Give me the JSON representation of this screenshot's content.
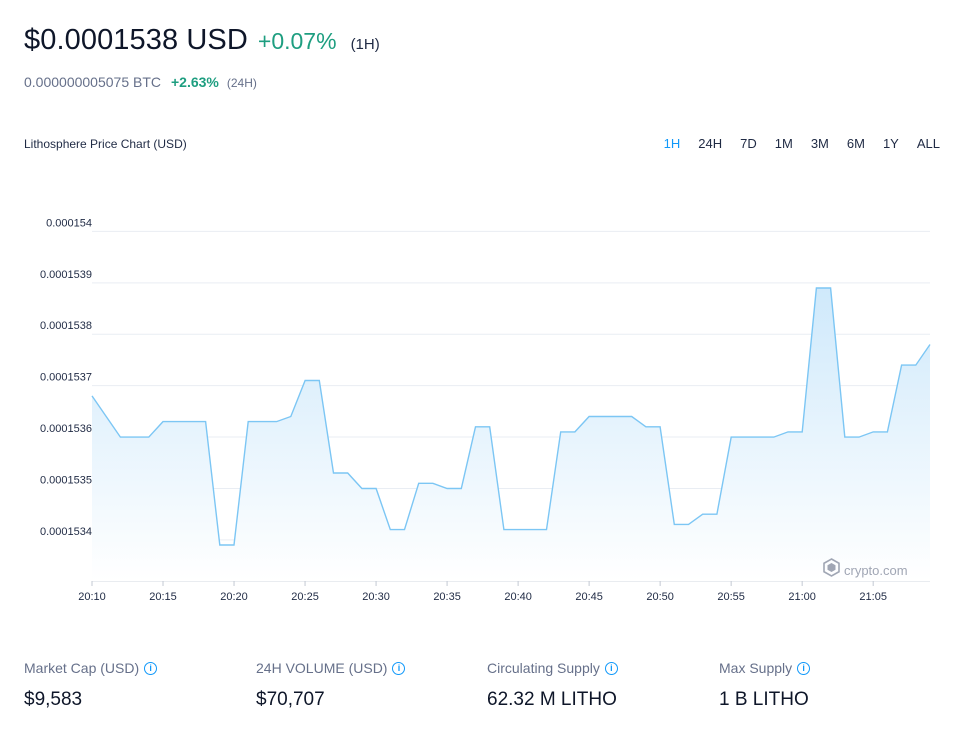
{
  "header": {
    "price": "$0.0001538 USD",
    "change": "+0.07%",
    "period": "(1H)",
    "btc_price": "0.000000005075 BTC",
    "btc_change": "+2.63%",
    "btc_period": "(24H)"
  },
  "chart_header": {
    "title": "Lithosphere Price Chart (USD)",
    "ranges": [
      "1H",
      "24H",
      "7D",
      "1M",
      "3M",
      "6M",
      "1Y",
      "ALL"
    ],
    "active_range": "1H"
  },
  "watermark": {
    "text": "crypto.com",
    "icon": "crypto-com-logo-icon"
  },
  "colors": {
    "line": "#7cc6f4",
    "fill_top": "#cfe9fb",
    "fill_bottom": "#ffffff",
    "up": "#1e9e80",
    "accent": "#1199fa",
    "grid": "#e9edf3"
  },
  "chart_data": {
    "type": "area",
    "title": "Lithosphere Price Chart (USD)",
    "xlabel": "",
    "ylabel": "",
    "grid": true,
    "y_ticks": [
      0.0001534,
      0.0001535,
      0.0001536,
      0.0001537,
      0.0001538,
      0.0001539,
      0.000154
    ],
    "y_tick_labels": [
      "0.0001534",
      "0.0001535",
      "0.0001536",
      "0.0001537",
      "0.0001538",
      "0.0001539",
      "0.000154"
    ],
    "ylim": [
      0.00015332,
      0.0001541
    ],
    "x_ticks": [
      "20:10",
      "20:15",
      "20:20",
      "20:25",
      "20:30",
      "20:35",
      "20:40",
      "20:45",
      "20:50",
      "20:55",
      "21:00",
      "21:05"
    ],
    "x_range": [
      "20:10",
      "21:09"
    ],
    "series": [
      {
        "points": [
          [
            "20:10",
            0.00015368
          ],
          [
            "20:11",
            0.00015364
          ],
          [
            "20:12",
            0.0001536
          ],
          [
            "20:13",
            0.0001536
          ],
          [
            "20:14",
            0.0001536
          ],
          [
            "20:15",
            0.00015363
          ],
          [
            "20:16",
            0.00015363
          ],
          [
            "20:17",
            0.00015363
          ],
          [
            "20:18",
            0.00015363
          ],
          [
            "20:19",
            0.00015339
          ],
          [
            "20:20",
            0.00015339
          ],
          [
            "20:21",
            0.00015363
          ],
          [
            "20:22",
            0.00015363
          ],
          [
            "20:23",
            0.00015363
          ],
          [
            "20:24",
            0.00015364
          ],
          [
            "20:25",
            0.00015371
          ],
          [
            "20:26",
            0.00015371
          ],
          [
            "20:27",
            0.00015353
          ],
          [
            "20:28",
            0.00015353
          ],
          [
            "20:29",
            0.0001535
          ],
          [
            "20:30",
            0.0001535
          ],
          [
            "20:31",
            0.00015342
          ],
          [
            "20:32",
            0.00015342
          ],
          [
            "20:33",
            0.00015351
          ],
          [
            "20:34",
            0.00015351
          ],
          [
            "20:35",
            0.0001535
          ],
          [
            "20:36",
            0.0001535
          ],
          [
            "20:37",
            0.00015362
          ],
          [
            "20:38",
            0.00015362
          ],
          [
            "20:39",
            0.00015342
          ],
          [
            "20:40",
            0.00015342
          ],
          [
            "20:41",
            0.00015342
          ],
          [
            "20:42",
            0.00015342
          ],
          [
            "20:43",
            0.00015361
          ],
          [
            "20:44",
            0.00015361
          ],
          [
            "20:45",
            0.00015364
          ],
          [
            "20:46",
            0.00015364
          ],
          [
            "20:47",
            0.00015364
          ],
          [
            "20:48",
            0.00015364
          ],
          [
            "20:49",
            0.00015362
          ],
          [
            "20:50",
            0.00015362
          ],
          [
            "20:51",
            0.00015343
          ],
          [
            "20:52",
            0.00015343
          ],
          [
            "20:53",
            0.00015345
          ],
          [
            "20:54",
            0.00015345
          ],
          [
            "20:55",
            0.0001536
          ],
          [
            "20:56",
            0.0001536
          ],
          [
            "20:57",
            0.0001536
          ],
          [
            "20:58",
            0.0001536
          ],
          [
            "20:59",
            0.00015361
          ],
          [
            "21:00",
            0.00015361
          ],
          [
            "21:01",
            0.00015389
          ],
          [
            "21:02",
            0.00015389
          ],
          [
            "21:03",
            0.0001536
          ],
          [
            "21:04",
            0.0001536
          ],
          [
            "21:05",
            0.00015361
          ],
          [
            "21:06",
            0.00015361
          ],
          [
            "21:07",
            0.00015374
          ],
          [
            "21:08",
            0.00015374
          ],
          [
            "21:09",
            0.00015378
          ]
        ]
      }
    ]
  },
  "stats": [
    {
      "label": "Market Cap (USD)",
      "value": "$9,583"
    },
    {
      "label": "24H VOLUME (USD)",
      "value": "$70,707"
    },
    {
      "label": "Circulating Supply",
      "value": "62.32 M LITHO"
    },
    {
      "label": "Max Supply",
      "value": "1 B LITHO"
    }
  ]
}
